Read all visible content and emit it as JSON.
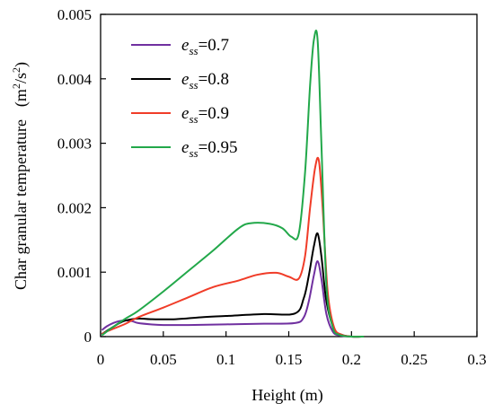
{
  "chart_data": {
    "type": "line",
    "xlabel": "Height (m)",
    "ylabel": "Char granular temperature",
    "ylabel_unit": {
      "base": "m",
      "sup1": "2",
      "mid": "/s",
      "sup2": "2"
    },
    "xlim": [
      0,
      0.3
    ],
    "ylim": [
      0,
      0.005
    ],
    "xticks": [
      0,
      0.05,
      0.1,
      0.15,
      0.2,
      0.25,
      0.3
    ],
    "xtick_labels": [
      "0",
      "0.05",
      "0.1",
      "0.15",
      "0.2",
      "0.25",
      "0.3"
    ],
    "yticks": [
      0,
      0.001,
      0.002,
      0.003,
      0.004,
      0.005
    ],
    "ytick_labels": [
      "0",
      "0.001",
      "0.002",
      "0.003",
      "0.004",
      "0.005"
    ],
    "grid": false,
    "legend_position": "top-left",
    "legend_prefix": "e",
    "legend_subscript": "ss",
    "series": [
      {
        "name": "=0.7",
        "color": "#7030a0",
        "x": [
          0.001,
          0.005,
          0.01,
          0.015,
          0.02,
          0.025,
          0.03,
          0.04,
          0.05,
          0.07,
          0.1,
          0.13,
          0.155,
          0.162,
          0.166,
          0.17,
          0.173,
          0.176,
          0.18,
          0.185,
          0.19,
          0.2,
          0.21
        ],
        "y": [
          0.0001,
          0.00016,
          0.00021,
          0.00024,
          0.00025,
          0.00024,
          0.00021,
          0.00019,
          0.00018,
          0.00018,
          0.00019,
          0.0002,
          0.00021,
          0.0003,
          0.00055,
          0.00095,
          0.00117,
          0.0009,
          0.00035,
          8e-05,
          2e-05,
          0.0,
          0.0
        ]
      },
      {
        "name": "=0.8",
        "color": "#000000",
        "x": [
          0.001,
          0.005,
          0.01,
          0.015,
          0.02,
          0.03,
          0.04,
          0.06,
          0.08,
          0.1,
          0.13,
          0.155,
          0.162,
          0.166,
          0.17,
          0.173,
          0.176,
          0.18,
          0.186,
          0.192,
          0.2,
          0.21
        ],
        "y": [
          4e-05,
          9e-05,
          0.00015,
          0.00021,
          0.00025,
          0.00028,
          0.00027,
          0.00027,
          0.0003,
          0.00032,
          0.00035,
          0.00036,
          0.0006,
          0.00095,
          0.0014,
          0.0016,
          0.00125,
          0.00055,
          0.00012,
          3e-05,
          0.0,
          0.0
        ]
      },
      {
        "name": "=0.9",
        "color": "#f03c28",
        "x": [
          0.001,
          0.005,
          0.01,
          0.02,
          0.03,
          0.05,
          0.07,
          0.09,
          0.11,
          0.125,
          0.14,
          0.15,
          0.158,
          0.163,
          0.167,
          0.171,
          0.174,
          0.177,
          0.181,
          0.186,
          0.192,
          0.2,
          0.21
        ],
        "y": [
          4e-05,
          8e-05,
          0.00012,
          0.0002,
          0.0003,
          0.00045,
          0.00061,
          0.00077,
          0.00087,
          0.00096,
          0.00099,
          0.00093,
          0.0009,
          0.00125,
          0.002,
          0.00262,
          0.00273,
          0.002,
          0.0007,
          0.00015,
          3e-05,
          0.0,
          0.0
        ]
      },
      {
        "name": "=0.95",
        "color": "#22a84a",
        "x": [
          0.001,
          0.005,
          0.01,
          0.02,
          0.03,
          0.05,
          0.07,
          0.09,
          0.11,
          0.12,
          0.135,
          0.145,
          0.152,
          0.158,
          0.163,
          0.167,
          0.17,
          0.173,
          0.176,
          0.18,
          0.185,
          0.19,
          0.2,
          0.21
        ],
        "y": [
          2e-05,
          8e-05,
          0.00015,
          0.00028,
          0.0004,
          0.0007,
          0.00102,
          0.00134,
          0.00168,
          0.00176,
          0.00175,
          0.00168,
          0.00155,
          0.0016,
          0.00255,
          0.0039,
          0.0046,
          0.0046,
          0.003,
          0.0008,
          0.00015,
          3e-05,
          0.0,
          0.0
        ]
      }
    ]
  }
}
